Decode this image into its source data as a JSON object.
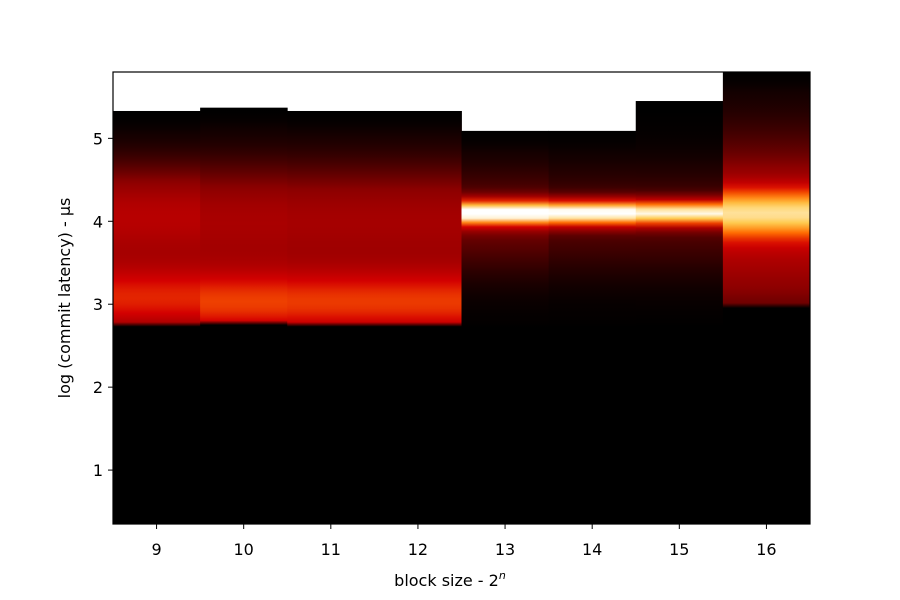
{
  "chart_data": {
    "type": "heatmap",
    "title": "",
    "xlabel": "block size - 2",
    "xlabel_superscript": "n",
    "ylabel": "log (commit latency) - μs",
    "colormap": "hot",
    "colormap_stops": [
      "#000000",
      "#8b0000",
      "#d40000",
      "#ff6a00",
      "#ffc94a",
      "#ffffff"
    ],
    "x_ticks": [
      "9",
      "10",
      "11",
      "12",
      "13",
      "14",
      "15",
      "16"
    ],
    "y_ticks": [
      "1",
      "2",
      "3",
      "4",
      "5"
    ],
    "xlim": [
      8.5,
      16.5
    ],
    "ylim": [
      0.35,
      5.8
    ],
    "columns": [
      {
        "x": 9,
        "top": 5.33,
        "peak_center": 3.05,
        "peak_sigma": 0.3,
        "peak_intensity": 0.44,
        "tail_center": 4.05,
        "tail_sigma": 0.45,
        "tail_intensity": 0.32,
        "cutoff": 2.75
      },
      {
        "x": 10,
        "top": 5.37,
        "peak_center": 3.0,
        "peak_sigma": 0.3,
        "peak_intensity": 0.48,
        "tail_center": 4.0,
        "tail_sigma": 0.5,
        "tail_intensity": 0.28,
        "cutoff": 2.75
      },
      {
        "x": 11,
        "top": 5.33,
        "peak_center": 3.0,
        "peak_sigma": 0.3,
        "peak_intensity": 0.47,
        "tail_center": 4.0,
        "tail_sigma": 0.5,
        "tail_intensity": 0.27,
        "cutoff": 2.75
      },
      {
        "x": 12,
        "top": 5.33,
        "peak_center": 3.0,
        "peak_sigma": 0.3,
        "peak_intensity": 0.47,
        "tail_center": 4.0,
        "tail_sigma": 0.5,
        "tail_intensity": 0.27,
        "cutoff": 2.75
      },
      {
        "x": 13,
        "top": 5.09,
        "peak_center": 4.1,
        "peak_sigma": 0.1,
        "peak_intensity": 0.97,
        "tail_center": 4.0,
        "tail_sigma": 0.45,
        "tail_intensity": 0.16,
        "cutoff": 2.75
      },
      {
        "x": 14,
        "top": 5.09,
        "peak_center": 4.1,
        "peak_sigma": 0.1,
        "peak_intensity": 0.95,
        "tail_center": 4.0,
        "tail_sigma": 0.45,
        "tail_intensity": 0.12,
        "cutoff": 2.75
      },
      {
        "x": 15,
        "top": 5.45,
        "peak_center": 4.1,
        "peak_sigma": 0.1,
        "peak_intensity": 0.86,
        "tail_center": 4.0,
        "tail_sigma": 0.45,
        "tail_intensity": 0.12,
        "cutoff": 2.75
      },
      {
        "x": 16,
        "top": 5.8,
        "peak_center": 4.1,
        "peak_sigma": 0.2,
        "peak_intensity": 0.58,
        "tail_center": 3.9,
        "tail_sigma": 0.75,
        "tail_intensity": 0.32,
        "cutoff": 3.0
      }
    ]
  }
}
